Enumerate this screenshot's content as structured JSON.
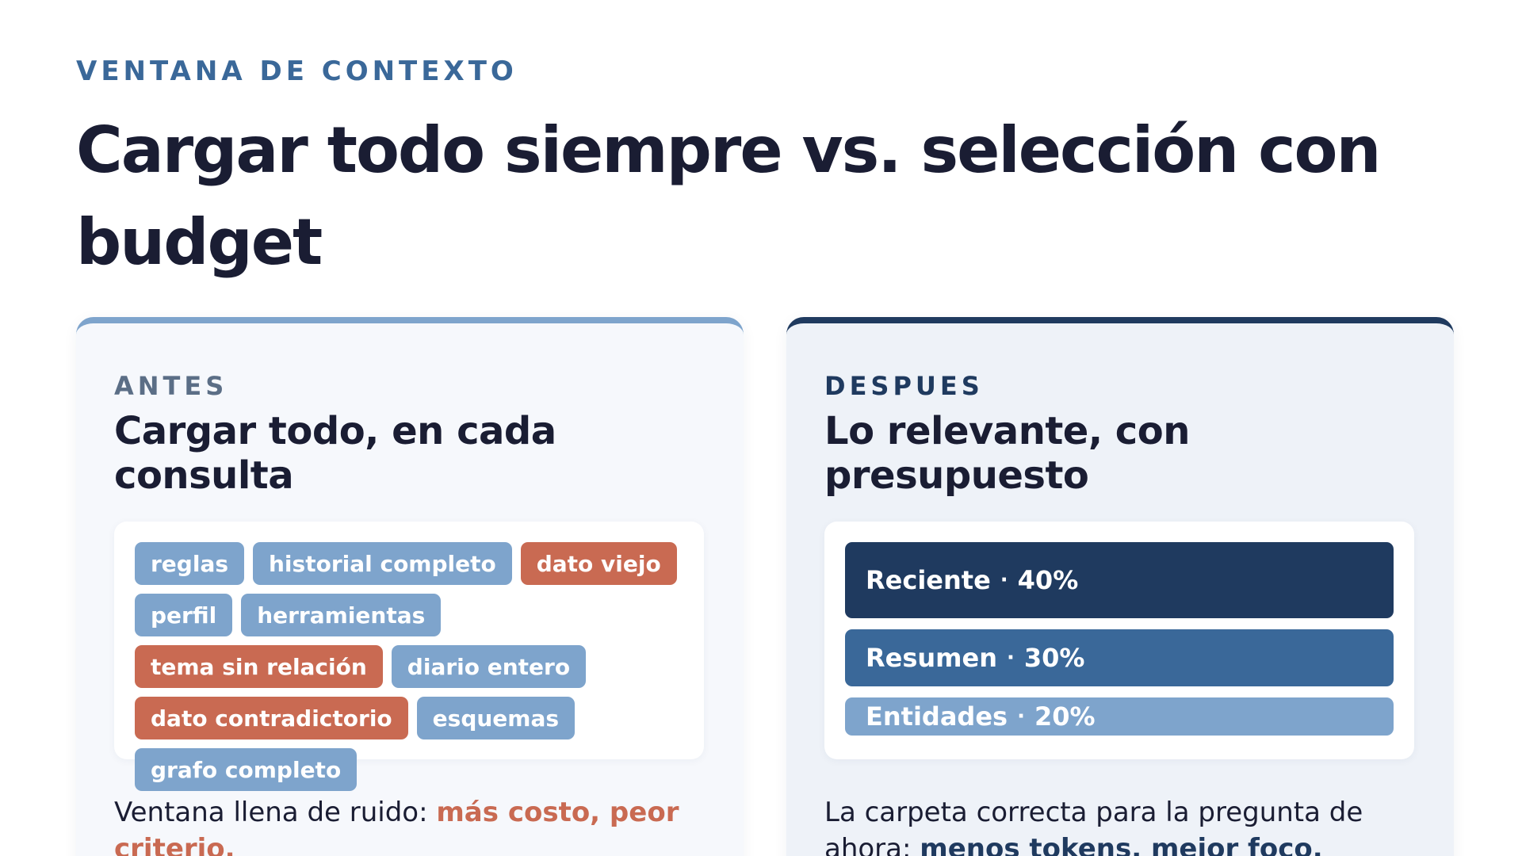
{
  "header": {
    "eyebrow": "VENTANA DE CONTEXTO",
    "title": "Cargar todo siempre vs. selección con budget"
  },
  "before": {
    "kicker": "ANTES",
    "title": "Cargar todo, en cada consulta",
    "chips": [
      {
        "label": "reglas",
        "kind": "ok"
      },
      {
        "label": "historial completo",
        "kind": "ok"
      },
      {
        "label": "dato viejo",
        "kind": "bad"
      },
      {
        "label": "perfil",
        "kind": "ok"
      },
      {
        "label": "herramientas",
        "kind": "ok"
      },
      {
        "label": "tema sin relación",
        "kind": "bad"
      },
      {
        "label": "diario entero",
        "kind": "ok"
      },
      {
        "label": "dato contradictorio",
        "kind": "bad"
      },
      {
        "label": "esquemas",
        "kind": "ok"
      },
      {
        "label": "grafo completo",
        "kind": "ok"
      }
    ],
    "note_plain": "Ventana llena de ruido: ",
    "note_emphasis": "más costo, peor criterio."
  },
  "after": {
    "kicker": "DESPUES",
    "title": "Lo relevante, con presupuesto",
    "separator": "·",
    "bars": [
      {
        "label": "Reciente",
        "percent_text": "40%",
        "share": 40,
        "color": "#1f3a5f"
      },
      {
        "label": "Resumen",
        "percent_text": "30%",
        "share": 30,
        "color": "#3a6899"
      },
      {
        "label": "Entidades",
        "percent_text": "20%",
        "share": 20,
        "color": "#7ea4cc"
      }
    ],
    "note_plain": "La carpeta correcta para la pregunta de ahora: ",
    "note_emphasis": "menos tokens, mejor foco."
  }
}
